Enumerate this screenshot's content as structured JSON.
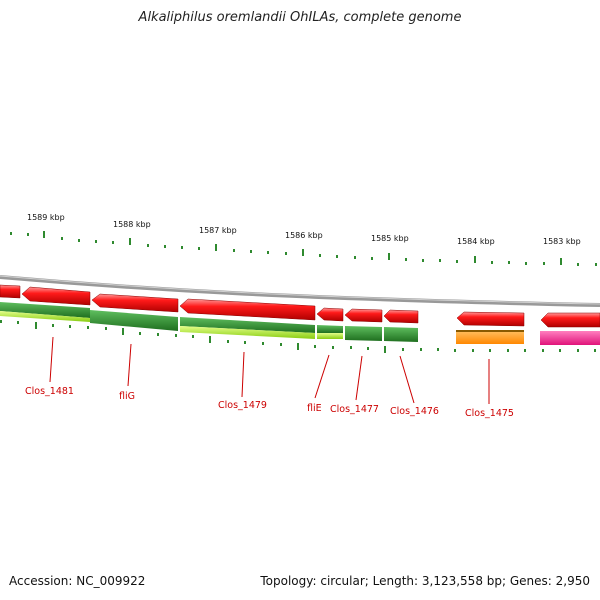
{
  "title": "Alkaliphilus oremlandii OhILAs, complete genome",
  "accession": "Accession: NC_009922",
  "summary": "Topology: circular; Length: 3,123,558 bp; Genes: 2,950",
  "scale_labels": [
    "1589 kbp",
    "1588 kbp",
    "1587 kbp",
    "1586 kbp",
    "1585 kbp",
    "1584 kbp",
    "1583 kbp"
  ],
  "gene_labels": [
    "Clos_1481",
    "fliG",
    "Clos_1479",
    "fliE",
    "Clos_1477",
    "Clos_1476",
    "Clos_1475"
  ],
  "colors": {
    "backbone": "#8a8a8a",
    "cds": "#ee1111",
    "cog_dark_green": "#2f8f2f",
    "cog_light_green": "#aaee33",
    "cog_orange": "#ff9900",
    "cog_pink": "#ff3399",
    "tick": "#2f8a2f",
    "label": "#cc0000"
  }
}
